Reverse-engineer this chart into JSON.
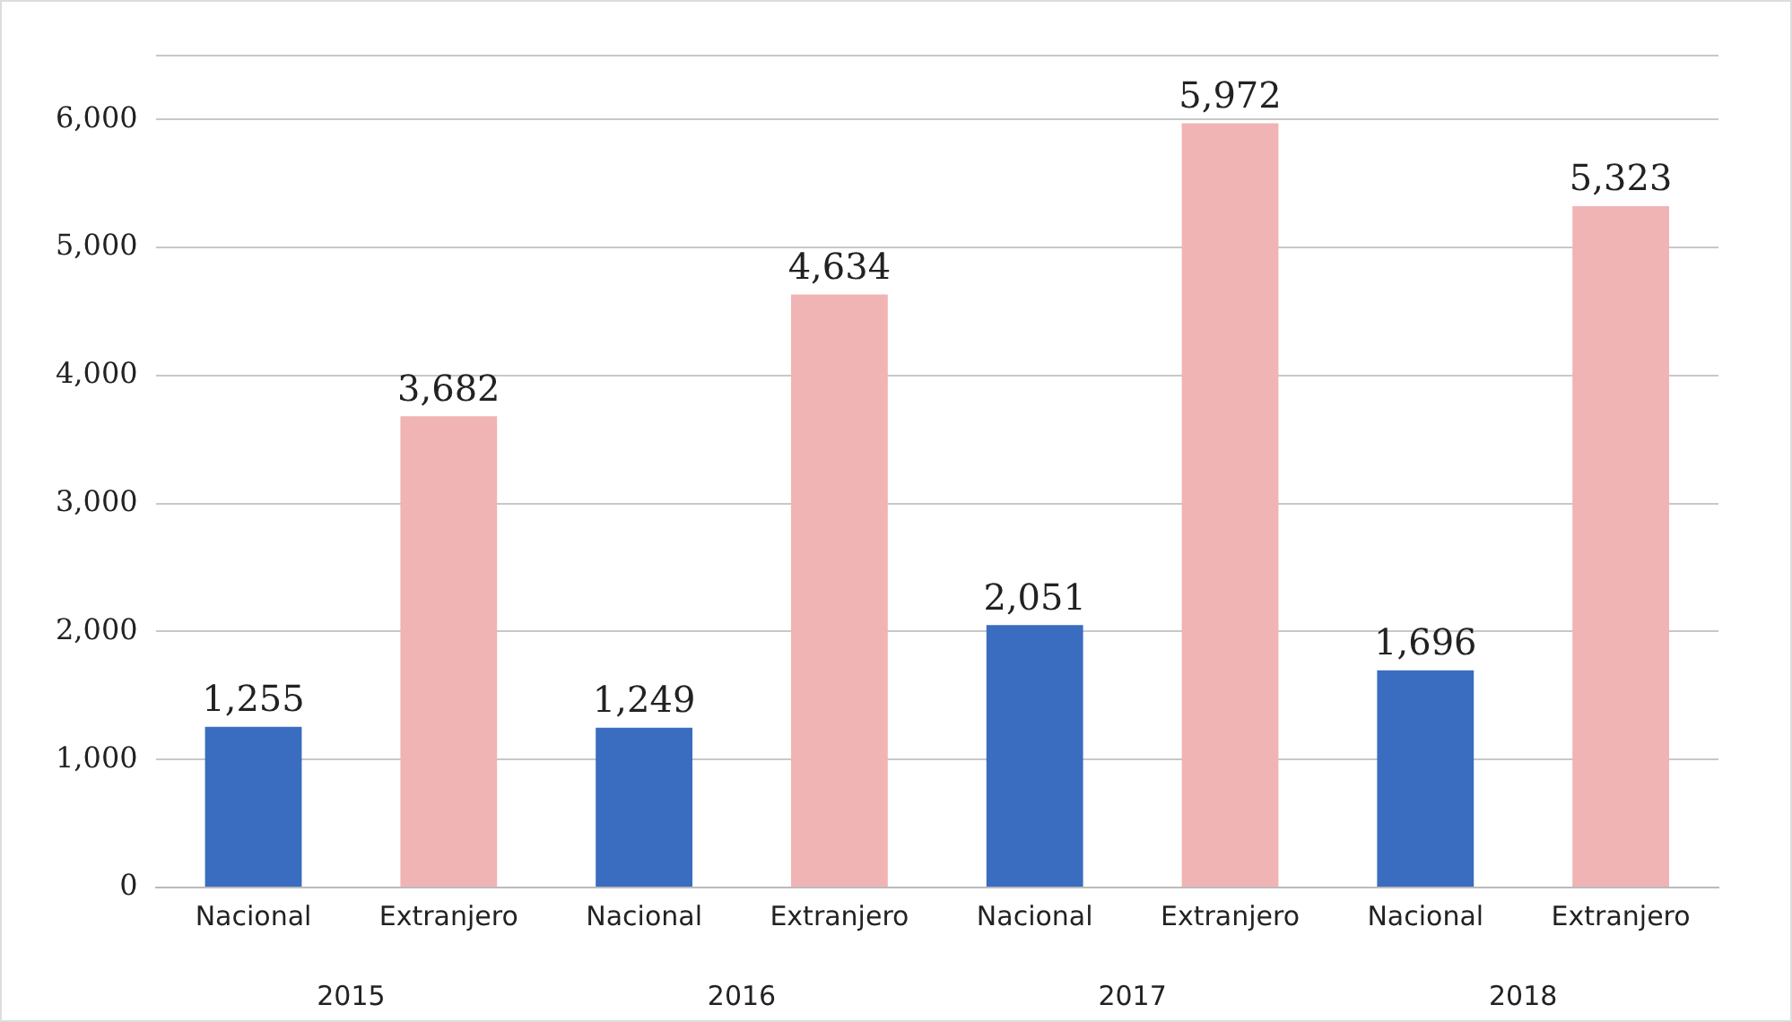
{
  "chart_data": {
    "type": "bar",
    "categories": [
      "Nacional",
      "Extranjero",
      "Nacional",
      "Extranjero",
      "Nacional",
      "Extranjero",
      "Nacional",
      "Extranjero"
    ],
    "values": [
      1255,
      3682,
      1249,
      4634,
      2051,
      5972,
      1696,
      5323
    ],
    "colors": [
      "#3a6cc0",
      "#f0b4b4",
      "#3a6cc0",
      "#f0b4b4",
      "#3a6cc0",
      "#f0b4b4",
      "#3a6cc0",
      "#f0b4b4"
    ],
    "ylim": [
      0,
      6500
    ],
    "yticks": [
      {
        "value": 0,
        "label": "0"
      },
      {
        "value": 1000,
        "label": "1,000"
      },
      {
        "value": 2000,
        "label": "2,000"
      },
      {
        "value": 3000,
        "label": "3,000"
      },
      {
        "value": 4000,
        "label": "4,000"
      },
      {
        "value": 5000,
        "label": "5,000"
      },
      {
        "value": 6000,
        "label": "6,000"
      },
      {
        "value": 6500,
        "label": null
      }
    ],
    "value_labels": [
      "1,255",
      "3,682",
      "1,249",
      "4,634",
      "2,051",
      "5,972",
      "1,696",
      "5,323"
    ],
    "grid": "y",
    "legend": false,
    "annotations": [
      "2015",
      "2016",
      "2017",
      "2018"
    ]
  }
}
